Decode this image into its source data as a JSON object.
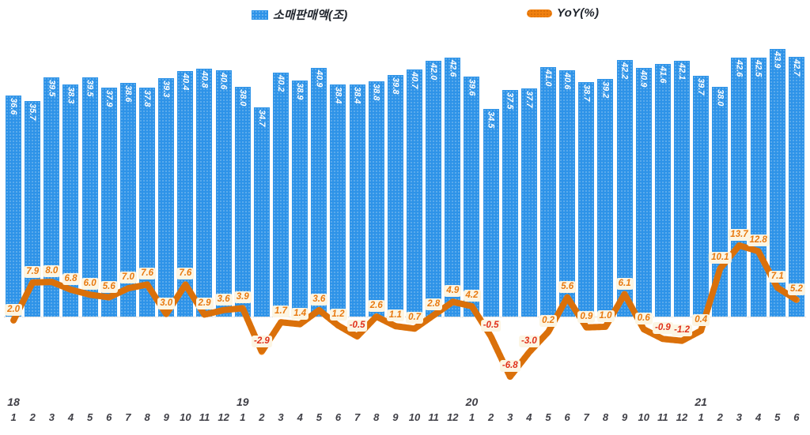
{
  "legend": {
    "bars_label": "소매판매액(조)",
    "line_label": "YoY(%)"
  },
  "colors": {
    "bar_blue": "#2e93e8",
    "line_orange": "#f0800f",
    "label_bg_cream": "#fcf5e3",
    "yoy_positive_text": "#e8790f",
    "yoy_negative_text": "#e0301a",
    "axis_text": "#3f3f46"
  },
  "chart_data": {
    "type": "bar",
    "title": "",
    "xlabel": "",
    "ylabel": "",
    "legend_position": "top",
    "grid": false,
    "months": [
      "1",
      "2",
      "3",
      "4",
      "5",
      "6",
      "7",
      "8",
      "9",
      "10",
      "11",
      "12",
      "1",
      "2",
      "3",
      "4",
      "5",
      "6",
      "7",
      "8",
      "9",
      "10",
      "11",
      "12",
      "1",
      "2",
      "3",
      "4",
      "5",
      "6",
      "7",
      "8",
      "9",
      "10",
      "11",
      "12",
      "1",
      "2",
      "3",
      "4",
      "5",
      "6"
    ],
    "year_marks": [
      {
        "index": 0,
        "label": "18"
      },
      {
        "index": 12,
        "label": "19"
      },
      {
        "index": 24,
        "label": "20"
      },
      {
        "index": 36,
        "label": "21"
      }
    ],
    "series": [
      {
        "name": "소매판매액(조)",
        "type": "bar",
        "values": [
          36.6,
          35.7,
          39.5,
          38.3,
          39.5,
          37.9,
          38.6,
          37.8,
          39.3,
          40.4,
          40.8,
          40.6,
          38.0,
          34.7,
          40.2,
          38.9,
          40.9,
          38.4,
          38.4,
          38.8,
          39.8,
          40.7,
          42.0,
          42.6,
          39.6,
          34.5,
          37.5,
          37.7,
          41.0,
          40.6,
          38.7,
          39.2,
          42.2,
          40.9,
          41.6,
          42.1,
          39.7,
          38.0,
          42.6,
          42.5,
          43.9,
          42.7
        ]
      },
      {
        "name": "YoY(%)",
        "type": "line",
        "values": [
          2.0,
          7.9,
          8.0,
          6.8,
          6.0,
          5.6,
          7.0,
          7.6,
          3.0,
          7.6,
          2.9,
          3.6,
          3.9,
          -2.9,
          1.7,
          1.4,
          3.6,
          1.2,
          -0.5,
          2.6,
          1.1,
          0.7,
          2.8,
          4.9,
          4.2,
          -0.5,
          -6.8,
          -3.0,
          0.2,
          5.6,
          0.9,
          1.0,
          6.1,
          0.6,
          -0.9,
          -1.2,
          0.4,
          10.1,
          13.7,
          12.8,
          7.1,
          5.2
        ]
      }
    ],
    "bar_axis_min": 2.0,
    "bar_axis_max": 43.9
  }
}
